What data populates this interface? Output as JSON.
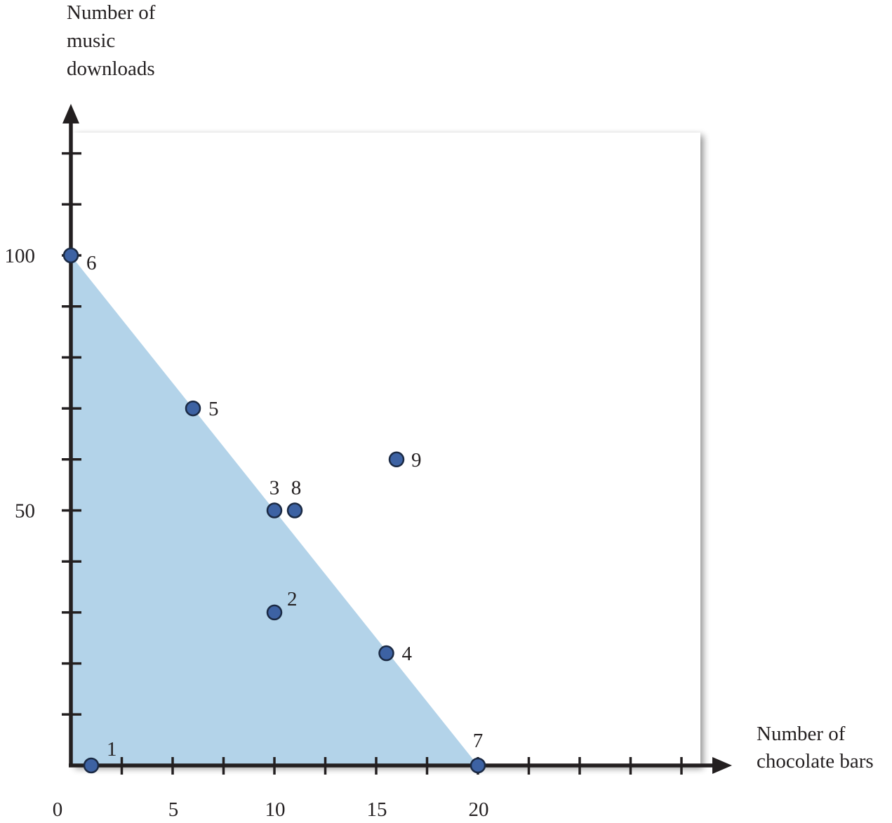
{
  "chart_data": {
    "type": "scatter",
    "title": "",
    "xlabel": [
      "Number of",
      "chocolate bars"
    ],
    "ylabel": [
      "Number of",
      "music",
      "downloads"
    ],
    "xlim": [
      0,
      31
    ],
    "ylim": [
      0,
      125
    ],
    "x_tick_step": 2.5,
    "y_tick_step": 10,
    "x_tick_labels": [
      {
        "value": 0,
        "label": "0"
      },
      {
        "value": 5,
        "label": "5"
      },
      {
        "value": 10,
        "label": "10"
      },
      {
        "value": 15,
        "label": "15"
      },
      {
        "value": 20,
        "label": "20"
      }
    ],
    "y_tick_labels": [
      {
        "value": 50,
        "label": "50"
      },
      {
        "value": 100,
        "label": "100"
      }
    ],
    "budget_region": {
      "x_intercept": 20,
      "y_intercept": 100
    },
    "points": [
      {
        "label": "1",
        "x": 1,
        "y": 0
      },
      {
        "label": "2",
        "x": 10,
        "y": 30
      },
      {
        "label": "3",
        "x": 10,
        "y": 50
      },
      {
        "label": "4",
        "x": 15.5,
        "y": 22
      },
      {
        "label": "5",
        "x": 6,
        "y": 70
      },
      {
        "label": "6",
        "x": 0,
        "y": 100
      },
      {
        "label": "7",
        "x": 20,
        "y": 0
      },
      {
        "label": "8",
        "x": 11,
        "y": 50
      },
      {
        "label": "9",
        "x": 16,
        "y": 60
      }
    ],
    "grid": false,
    "legend": "none",
    "colors": {
      "region": "#b3d3e9",
      "point_fill": "#3d62a3",
      "point_stroke": "#1b2a44",
      "axis": "#231f20"
    }
  }
}
